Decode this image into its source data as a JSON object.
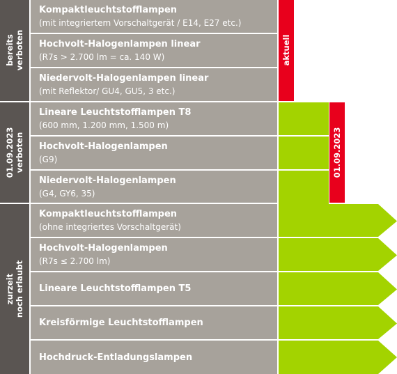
{
  "groups": [
    {
      "label_line1": "bereits",
      "label_line2": "verboten"
    },
    {
      "label_line1": "01.09.2023",
      "label_line2": "verboten"
    },
    {
      "label_line1": "zurzeit",
      "label_line2": "noch erlaubt"
    }
  ],
  "rows": [
    {
      "title": "Kompaktleuchtstofflampen",
      "subtitle": "(mit integriertem Vorschaltgerät / E14, E27 etc.)"
    },
    {
      "title": "Hochvolt-Halogenlampen linear",
      "subtitle": "(R7s > 2.700 lm = ca. 140 W)"
    },
    {
      "title": "Niedervolt-Halogenlampen linear",
      "subtitle": "(mit Reflektor/ GU4, GU5, 3 etc.)"
    },
    {
      "title": "Lineare Leuchtstofflampen T8",
      "subtitle": "(600 mm, 1.200 mm, 1.500 m)"
    },
    {
      "title": "Hochvolt-Halogenlampen",
      "subtitle": "(G9)"
    },
    {
      "title": "Niedervolt-Halogenlampen",
      "subtitle": "(G4, GY6, 35)"
    },
    {
      "title": "Kompaktleuchtstofflampen",
      "subtitle": "(ohne integriertes Vorschaltgerät)"
    },
    {
      "title": "Hochvolt-Halogenlampen",
      "subtitle": "(R7s ≤ 2.700 lm)"
    },
    {
      "title": "Lineare Leuchtstofflampen T5",
      "subtitle": ""
    },
    {
      "title": "Kreisförmige Leuchtstofflampen",
      "subtitle": ""
    },
    {
      "title": "Hochdruck-Entladungslampen",
      "subtitle": ""
    }
  ],
  "markers": {
    "current_label": "aktuell",
    "date_label": "01.09.2023"
  },
  "colors": {
    "group_bar": "#5a5552",
    "row_background": "#a7a29b",
    "red": "#e8001c",
    "green": "#a3d300"
  }
}
